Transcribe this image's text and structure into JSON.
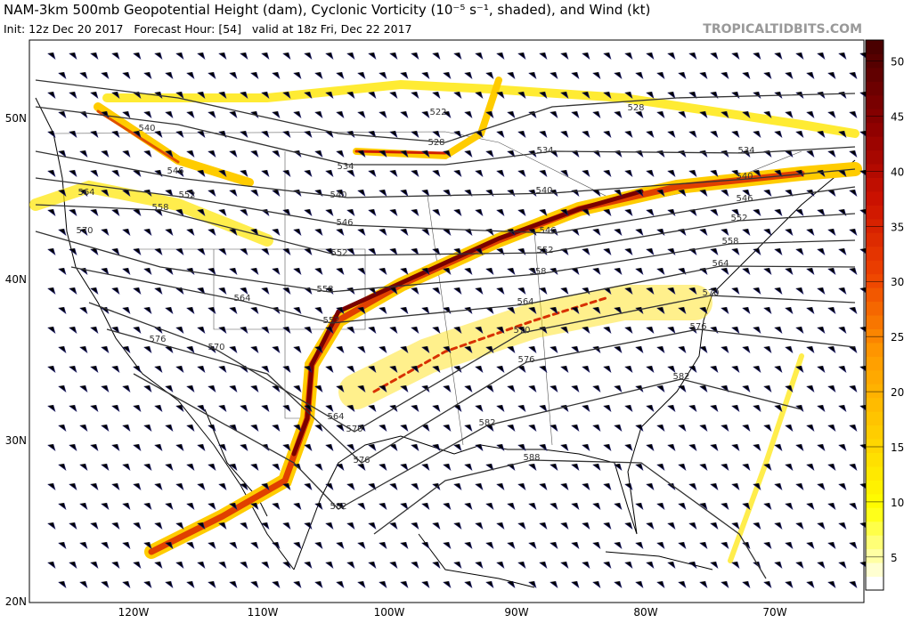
{
  "header": {
    "title": "NAM-3km 500mb Geopotential Height (dam), Cyclonic Vorticity (10⁻⁵ s⁻¹, shaded), and Wind (kt)",
    "init": "Init: 12z Dec 20 2017   Forecast Hour: [54]   valid at 18z Fri, Dec 22 2017",
    "site": "TROPICALTIDBITS.COM"
  },
  "map": {
    "lat_labels": [
      "50N",
      "40N",
      "30N",
      "20N"
    ],
    "lon_labels": [
      "120W",
      "110W",
      "100W",
      "90W",
      "80W",
      "70W"
    ],
    "contour_labels": [
      "540",
      "546",
      "552",
      "558",
      "564",
      "570",
      "564",
      "576",
      "570",
      "558",
      "552",
      "552",
      "546",
      "540",
      "534",
      "528",
      "522",
      "534",
      "540",
      "546",
      "552",
      "558",
      "564",
      "570",
      "576",
      "582",
      "588",
      "582",
      "576",
      "570",
      "564",
      "528",
      "534",
      "540",
      "546",
      "552",
      "558",
      "564",
      "570",
      "576",
      "582"
    ]
  },
  "colorbar": {
    "range": [
      2,
      51.9
    ],
    "ticks": [
      5,
      10,
      15,
      20,
      25,
      30,
      35,
      40,
      45,
      50
    ],
    "colors": [
      "#ffffff",
      "#ffff00",
      "#ffcc00",
      "#ff9900",
      "#ee4400",
      "#cc1100",
      "#8b0000",
      "#4a0000"
    ]
  }
}
